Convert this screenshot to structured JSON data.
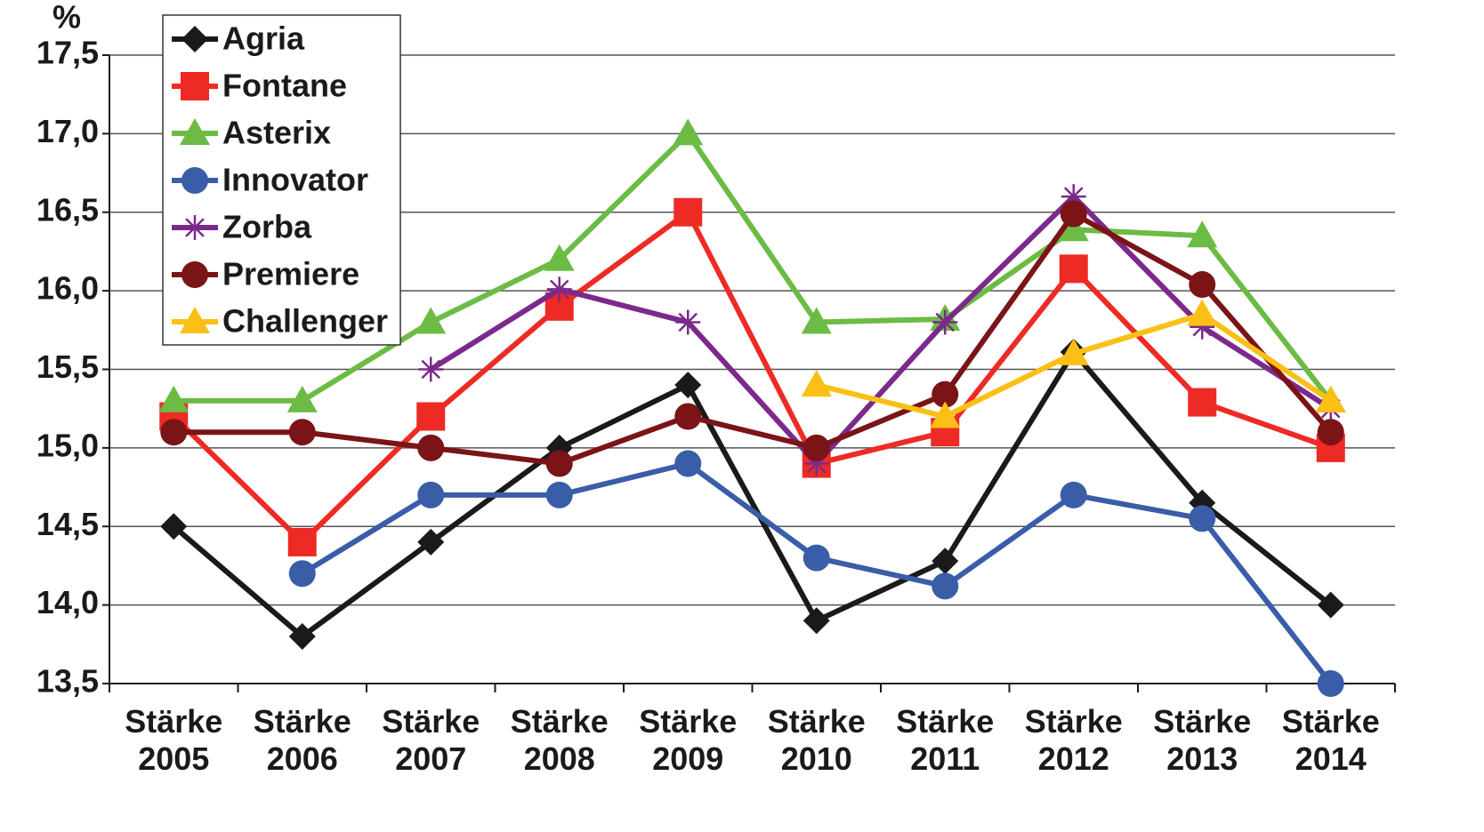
{
  "chart_data": {
    "type": "line",
    "y_label": "%",
    "categories": [
      "Stärke 2005",
      "Stärke 2006",
      "Stärke 2007",
      "Stärke 2008",
      "Stärke 2009",
      "Stärke 2010",
      "Stärke 2011",
      "Stärke 2012",
      "Stärke 2013",
      "Stärke 2014"
    ],
    "ylim": [
      13.5,
      17.5
    ],
    "yticks": [
      {
        "value": 13.5,
        "label": "13,5"
      },
      {
        "value": 14,
        "label": "14,0"
      },
      {
        "value": 14.5,
        "label": "14,5"
      },
      {
        "value": 15,
        "label": "15,0"
      },
      {
        "value": 15.5,
        "label": "15,5"
      },
      {
        "value": 16,
        "label": "16,0"
      },
      {
        "value": 16.5,
        "label": "16,5"
      },
      {
        "value": 17,
        "label": "17,0"
      },
      {
        "value": 17.5,
        "label": "17,5"
      }
    ],
    "grid": true,
    "legend": "top-left",
    "series": [
      {
        "name": "Agria",
        "color": "#1a1a1a",
        "marker": "diamond",
        "values": [
          14.5,
          13.8,
          14.4,
          15.0,
          15.4,
          13.9,
          14.28,
          15.61,
          14.65,
          14.0
        ]
      },
      {
        "name": "Fontane",
        "color": "#ee2a24",
        "marker": "square",
        "values": [
          15.2,
          14.4,
          15.2,
          15.9,
          16.5,
          14.9,
          15.1,
          16.14,
          15.29,
          15.0
        ]
      },
      {
        "name": "Asterix",
        "color": "#6cbb45",
        "marker": "triangle",
        "values": [
          15.3,
          15.3,
          15.8,
          16.2,
          17.0,
          15.8,
          15.82,
          16.39,
          16.35,
          15.3
        ]
      },
      {
        "name": "Innovator",
        "color": "#3a5da8",
        "marker": "circle",
        "values": [
          null,
          14.2,
          14.7,
          14.7,
          14.9,
          14.3,
          14.12,
          14.7,
          14.55,
          13.5
        ]
      },
      {
        "name": "Zorba",
        "color": "#7b2a8b",
        "marker": "asterisk",
        "values": [
          null,
          null,
          15.5,
          16.01,
          15.8,
          14.9,
          15.8,
          16.6,
          15.77,
          15.25
        ]
      },
      {
        "name": "Premiere",
        "color": "#7a1416",
        "marker": "circle",
        "values": [
          15.1,
          15.1,
          15.0,
          14.9,
          15.2,
          15.0,
          15.34,
          16.49,
          16.04,
          15.1
        ]
      },
      {
        "name": "Challenger",
        "color": "#fbbf16",
        "marker": "triangle",
        "values": [
          null,
          null,
          null,
          null,
          null,
          15.4,
          15.2,
          15.6,
          15.85,
          15.3
        ]
      }
    ]
  }
}
